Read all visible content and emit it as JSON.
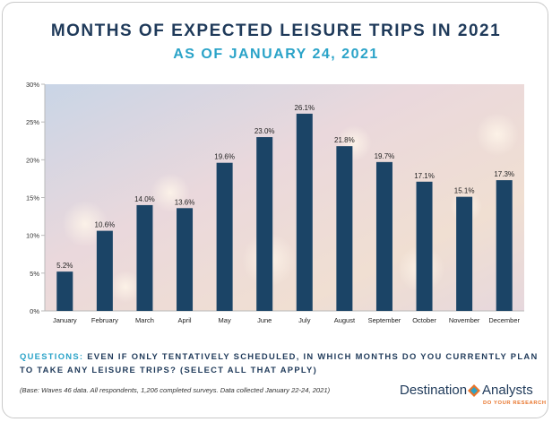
{
  "title": "MONTHS OF EXPECTED LEISURE TRIPS IN 2021",
  "subtitle": "AS OF JANUARY 24, 2021",
  "chart_data": {
    "type": "bar",
    "categories": [
      "January",
      "February",
      "March",
      "April",
      "May",
      "June",
      "July",
      "August",
      "September",
      "October",
      "November",
      "December"
    ],
    "values": [
      5.2,
      10.6,
      14.0,
      13.6,
      19.6,
      23.0,
      26.1,
      21.8,
      19.7,
      17.1,
      15.1,
      17.3
    ],
    "data_labels": [
      "5.2%",
      "10.6%",
      "14.0%",
      "13.6%",
      "19.6%",
      "23.0%",
      "26.1%",
      "21.8%",
      "19.7%",
      "17.1%",
      "15.1%",
      "17.3%"
    ],
    "ylim": [
      0,
      30
    ],
    "yticks": [
      0,
      5,
      10,
      15,
      20,
      25,
      30
    ],
    "ytick_labels": [
      "0%",
      "5%",
      "10%",
      "15%",
      "20%",
      "25%",
      "30%"
    ],
    "xlabel": "",
    "ylabel": "",
    "grid": false,
    "bar_color": "#1b4466"
  },
  "question": {
    "label": "Questions:",
    "text": "Even if only tentatively scheduled, in which months do you currently plan to take any leisure trips? (Select all that apply)"
  },
  "base_note": "(Base: Waves 46 data. All respondents, 1,206 completed surveys. Data collected January 22-24, 2021)",
  "logo": {
    "word1": "Destination",
    "word2": "Analysts",
    "tagline": "DO YOUR RESEARCH"
  }
}
